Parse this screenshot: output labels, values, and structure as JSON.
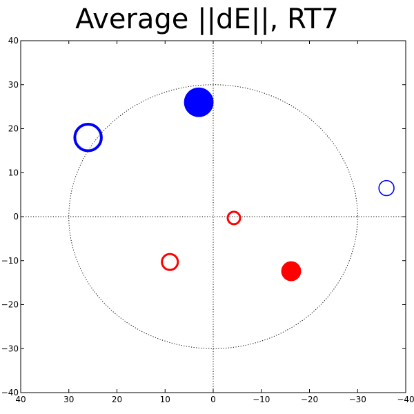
{
  "chart_data": {
    "type": "scatter",
    "title": "Average ||dE||, RT7",
    "xlabel": "",
    "ylabel": "",
    "xlim": [
      40,
      -40
    ],
    "ylim": [
      -40,
      40
    ],
    "x_ticks": [
      "40",
      "30",
      "20",
      "10",
      "0",
      "−10",
      "−20",
      "−30",
      "−40"
    ],
    "y_ticks": [
      "40",
      "30",
      "20",
      "10",
      "0",
      "−10",
      "−20",
      "−30",
      "−40"
    ],
    "grid": false,
    "reference_circle_radius": 30,
    "points": [
      {
        "x": 3,
        "y": 26,
        "size": 3,
        "color": "#0000ff",
        "filled": true
      },
      {
        "x": 26,
        "y": 18,
        "size": 3,
        "color": "#0000ff",
        "filled": false
      },
      {
        "x": -36,
        "y": 6.5,
        "size": 1.7,
        "color": "#0000ff",
        "filled": false
      },
      {
        "x": -4.3,
        "y": -0.3,
        "size": 1.4,
        "color": "#ff0000",
        "filled": false
      },
      {
        "x": 9,
        "y": -10.3,
        "size": 1.8,
        "color": "#ff0000",
        "filled": false
      },
      {
        "x": -16.2,
        "y": -12.4,
        "size": 2.0,
        "color": "#ff0000",
        "filled": true
      }
    ]
  }
}
